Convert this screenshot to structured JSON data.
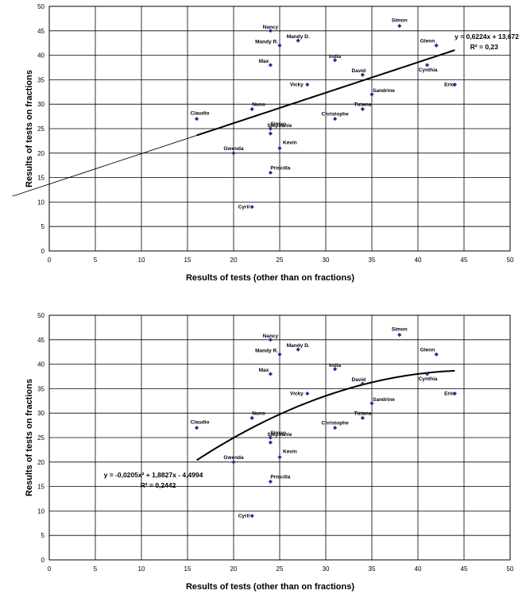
{
  "chart_data": [
    {
      "type": "scatter",
      "xlabel": "Results of tests  (other than on fractions)",
      "ylabel": "Results of tests on fractions",
      "xlim": [
        0,
        50
      ],
      "ylim": [
        0,
        50
      ],
      "xticks": [
        "0",
        "5",
        "10",
        "15",
        "20",
        "25",
        "30",
        "35",
        "40",
        "45",
        "50"
      ],
      "yticks": [
        "0",
        "5",
        "10",
        "15",
        "20",
        "25",
        "30",
        "35",
        "40",
        "45",
        "50"
      ],
      "grid": true,
      "marker_color": "#2b2b8c",
      "points": [
        {
          "label": "Nancy",
          "x": 24,
          "y": 45
        },
        {
          "label": "Mandy R.",
          "x": 25,
          "y": 42
        },
        {
          "label": "Mandy D.",
          "x": 27,
          "y": 43
        },
        {
          "label": "Max",
          "x": 24,
          "y": 38
        },
        {
          "label": "Simon",
          "x": 38,
          "y": 46
        },
        {
          "label": "Glenn",
          "x": 42,
          "y": 42
        },
        {
          "label": "India",
          "x": 31,
          "y": 39
        },
        {
          "label": "Cynthia",
          "x": 41,
          "y": 38
        },
        {
          "label": "David",
          "x": 34,
          "y": 36
        },
        {
          "label": "Vicky",
          "x": 28,
          "y": 34
        },
        {
          "label": "Eric",
          "x": 44,
          "y": 34
        },
        {
          "label": "Sandrine",
          "x": 35,
          "y": 32
        },
        {
          "label": "Nuno",
          "x": 22,
          "y": 29
        },
        {
          "label": "Tiziana",
          "x": 34,
          "y": 29
        },
        {
          "label": "Claudio",
          "x": 16,
          "y": 27
        },
        {
          "label": "Christophe",
          "x": 31,
          "y": 27
        },
        {
          "label": "Simao",
          "x": 24,
          "y": 25
        },
        {
          "label": "Stéphanie",
          "x": 24,
          "y": 24
        },
        {
          "label": "Kevin",
          "x": 25,
          "y": 21
        },
        {
          "label": "Gwenda",
          "x": 20,
          "y": 20
        },
        {
          "label": "Priscilla",
          "x": 24,
          "y": 16
        },
        {
          "label": "Cyril",
          "x": 22,
          "y": 9
        }
      ],
      "trendline": {
        "kind": "linear",
        "coefficients": [
          0.6224,
          13.672
        ],
        "equation_label": "y = 0,6224x + 13,672",
        "r2_label": "R² = 0,23"
      }
    },
    {
      "type": "scatter",
      "xlabel": "Results of tests  (other than on fractions)",
      "ylabel": "Results of tests on fractions",
      "xlim": [
        0,
        50
      ],
      "ylim": [
        0,
        50
      ],
      "xticks": [
        "0",
        "5",
        "10",
        "15",
        "20",
        "25",
        "30",
        "35",
        "40",
        "45",
        "50"
      ],
      "yticks": [
        "0",
        "5",
        "10",
        "15",
        "20",
        "25",
        "30",
        "35",
        "40",
        "45",
        "50"
      ],
      "grid": true,
      "marker_color": "#2b2b8c",
      "points": [
        {
          "label": "Nancy",
          "x": 24,
          "y": 45
        },
        {
          "label": "Mandy R.",
          "x": 25,
          "y": 42
        },
        {
          "label": "Mandy D.",
          "x": 27,
          "y": 43
        },
        {
          "label": "Max",
          "x": 24,
          "y": 38
        },
        {
          "label": "Simon",
          "x": 38,
          "y": 46
        },
        {
          "label": "Glenn",
          "x": 42,
          "y": 42
        },
        {
          "label": "India",
          "x": 31,
          "y": 39
        },
        {
          "label": "Cynthia",
          "x": 41,
          "y": 38
        },
        {
          "label": "David",
          "x": 34,
          "y": 36
        },
        {
          "label": "Vicky",
          "x": 28,
          "y": 34
        },
        {
          "label": "Eric",
          "x": 44,
          "y": 34
        },
        {
          "label": "Sandrine",
          "x": 35,
          "y": 32
        },
        {
          "label": "Nuno",
          "x": 22,
          "y": 29
        },
        {
          "label": "Tiziana",
          "x": 34,
          "y": 29
        },
        {
          "label": "Claudio",
          "x": 16,
          "y": 27
        },
        {
          "label": "Christophe",
          "x": 31,
          "y": 27
        },
        {
          "label": "Simao",
          "x": 24,
          "y": 25
        },
        {
          "label": "Stéphanie",
          "x": 24,
          "y": 24
        },
        {
          "label": "Kevin",
          "x": 25,
          "y": 21
        },
        {
          "label": "Gwenda",
          "x": 20,
          "y": 20
        },
        {
          "label": "Priscilla",
          "x": 24,
          "y": 16
        },
        {
          "label": "Cyril",
          "x": 22,
          "y": 9
        }
      ],
      "trendline": {
        "kind": "polynomial",
        "coefficients": [
          -0.0205,
          1.8827,
          -4.4994
        ],
        "equation_label": "y = -0,0205x² + 1,8827x - 4,4994",
        "r2_label": "R² = 0,2442"
      }
    }
  ]
}
